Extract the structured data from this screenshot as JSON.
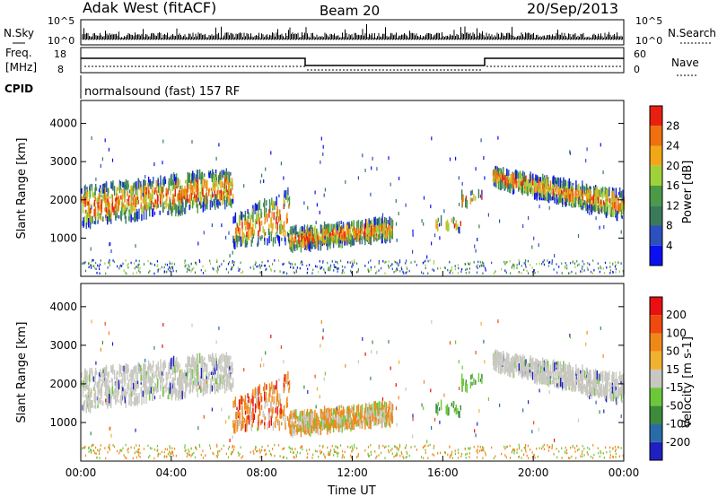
{
  "header": {
    "station": "Adak West (fitACF)",
    "beam": "Beam 20",
    "date": "20/Sep/2013"
  },
  "nsky_panel": {
    "left_label": "N.Sky",
    "right_label": "N.Search",
    "left_ticks": [
      "10^5",
      "10^0"
    ],
    "right_ticks": [
      "10^5",
      "10^0"
    ]
  },
  "freq_panel": {
    "left_label_1": "Freq.",
    "left_label_2": "[MHz]",
    "right_label": "Nave",
    "left_ticks": [
      "18",
      "8"
    ],
    "right_ticks": [
      "60",
      "0"
    ]
  },
  "cpid_panel": {
    "label": "CPID",
    "text": "normalsound (fast) 157 RF"
  },
  "colors": {
    "power_scale": [
      "#0a10f0",
      "#2d4fc0",
      "#3a7a5a",
      "#4a9a4a",
      "#9fd23a",
      "#f0a818",
      "#f07010",
      "#e82010"
    ],
    "velocity_scale": [
      "#e81010",
      "#f04a10",
      "#f08818",
      "#f0b030",
      "#c8c8c0",
      "#6cc83a",
      "#3c8a3c",
      "#2a6aa8",
      "#2020c0"
    ]
  },
  "chart_data": [
    {
      "type": "heatmap",
      "title": "",
      "ylabel": "Slant Range [km]",
      "xlabel": "",
      "x_ticks": [
        "00:00",
        "04:00",
        "08:00",
        "12:00",
        "16:00",
        "20:00",
        "00:00"
      ],
      "y_ticks": [
        1000,
        2000,
        3000,
        4000
      ],
      "ylim": [
        0,
        4600
      ],
      "colorbar_label": "Power [dB]",
      "colorbar_ticks": [
        4,
        8,
        12,
        16,
        20,
        24,
        28
      ],
      "colorbar_range": [
        0,
        32
      ]
    },
    {
      "type": "heatmap",
      "title": "",
      "ylabel": "Slant Range [km]",
      "xlabel": "Time UT",
      "x_ticks": [
        "00:00",
        "04:00",
        "08:00",
        "12:00",
        "16:00",
        "20:00",
        "00:00"
      ],
      "y_ticks": [
        1000,
        2000,
        3000,
        4000
      ],
      "ylim": [
        0,
        4600
      ],
      "colorbar_label": "Velocity [m s-1]",
      "colorbar_ticks": [
        200,
        100,
        50,
        15,
        -15,
        -50,
        -100,
        -200
      ]
    }
  ]
}
